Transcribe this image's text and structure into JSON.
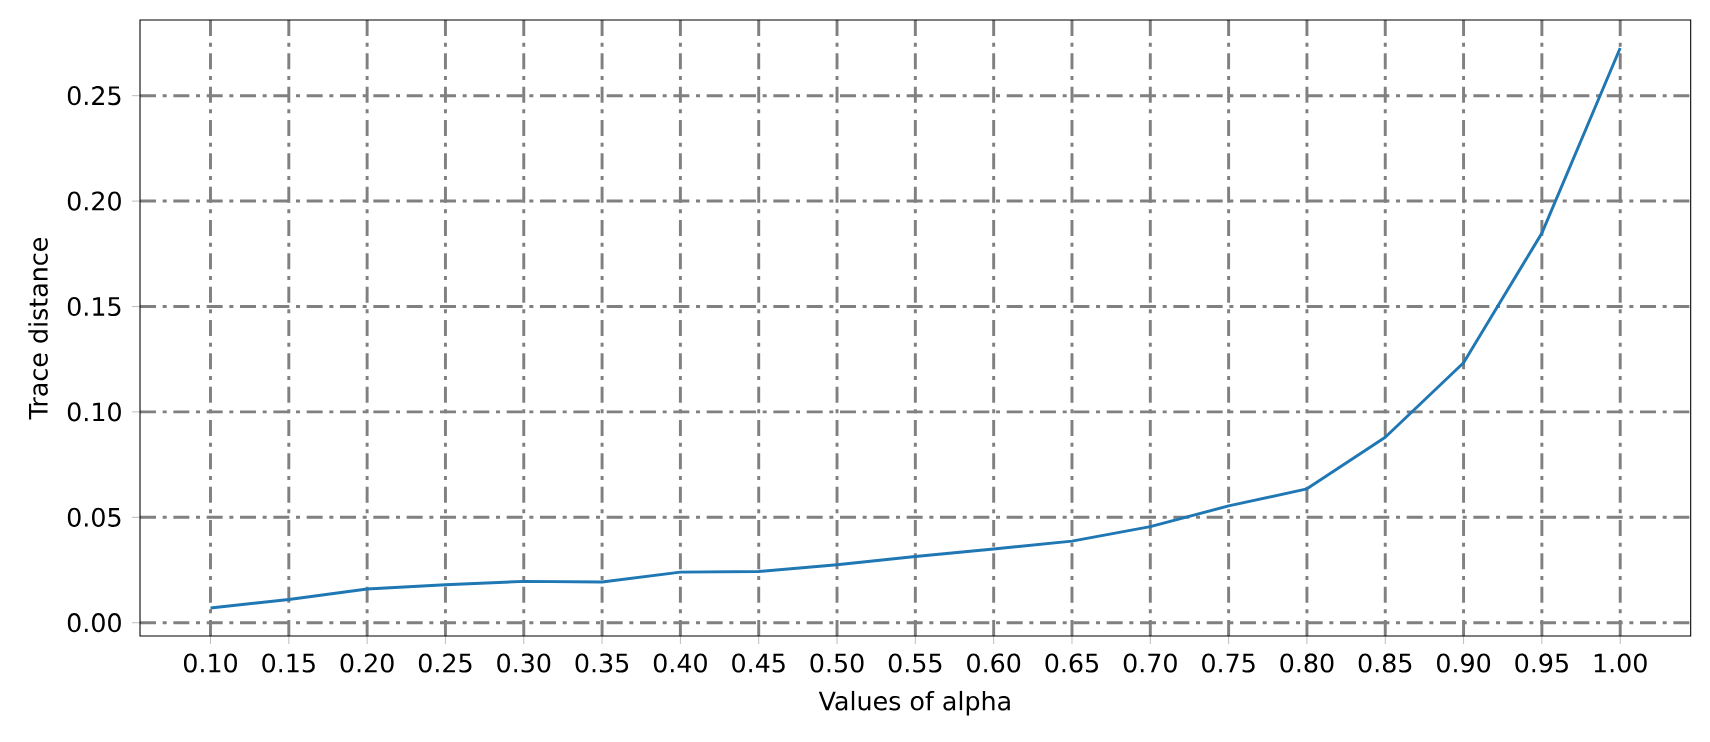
{
  "chart_data": {
    "type": "line",
    "xlabel": "Values of alpha",
    "ylabel": "Trace distance",
    "x": [
      0.1,
      0.15,
      0.2,
      0.25,
      0.3,
      0.35,
      0.4,
      0.45,
      0.5,
      0.55,
      0.6,
      0.65,
      0.7,
      0.75,
      0.8,
      0.85,
      0.9,
      0.95,
      1.0
    ],
    "series": [
      {
        "color": "#1f77b4",
        "values": [
          0.007,
          0.011,
          0.016,
          0.018,
          0.0196,
          0.0193,
          0.024,
          0.0243,
          0.0275,
          0.0314,
          0.035,
          0.0387,
          0.0456,
          0.0554,
          0.0635,
          0.088,
          0.1233,
          0.1848,
          0.2726
        ]
      }
    ],
    "xlim": [
      0.055,
      1.045
    ],
    "ylim": [
      -0.0063,
      0.2859
    ],
    "xticks": [
      {
        "value": 0.1,
        "label": "0.10"
      },
      {
        "value": 0.15,
        "label": "0.15"
      },
      {
        "value": 0.2,
        "label": "0.20"
      },
      {
        "value": 0.25,
        "label": "0.25"
      },
      {
        "value": 0.3,
        "label": "0.30"
      },
      {
        "value": 0.35,
        "label": "0.35"
      },
      {
        "value": 0.4,
        "label": "0.40"
      },
      {
        "value": 0.45,
        "label": "0.45"
      },
      {
        "value": 0.5,
        "label": "0.50"
      },
      {
        "value": 0.55,
        "label": "0.55"
      },
      {
        "value": 0.6,
        "label": "0.60"
      },
      {
        "value": 0.65,
        "label": "0.65"
      },
      {
        "value": 0.7,
        "label": "0.70"
      },
      {
        "value": 0.75,
        "label": "0.75"
      },
      {
        "value": 0.8,
        "label": "0.80"
      },
      {
        "value": 0.85,
        "label": "0.85"
      },
      {
        "value": 0.9,
        "label": "0.90"
      },
      {
        "value": 0.95,
        "label": "0.95"
      },
      {
        "value": 1.0,
        "label": "1.00"
      }
    ],
    "yticks": [
      {
        "value": 0.0,
        "label": "0.00"
      },
      {
        "value": 0.05,
        "label": "0.05"
      },
      {
        "value": 0.1,
        "label": "0.10"
      },
      {
        "value": 0.15,
        "label": "0.15"
      },
      {
        "value": 0.2,
        "label": "0.20"
      },
      {
        "value": 0.25,
        "label": "0.25"
      }
    ],
    "grid": true,
    "line_style": "solid",
    "marker": "none"
  }
}
